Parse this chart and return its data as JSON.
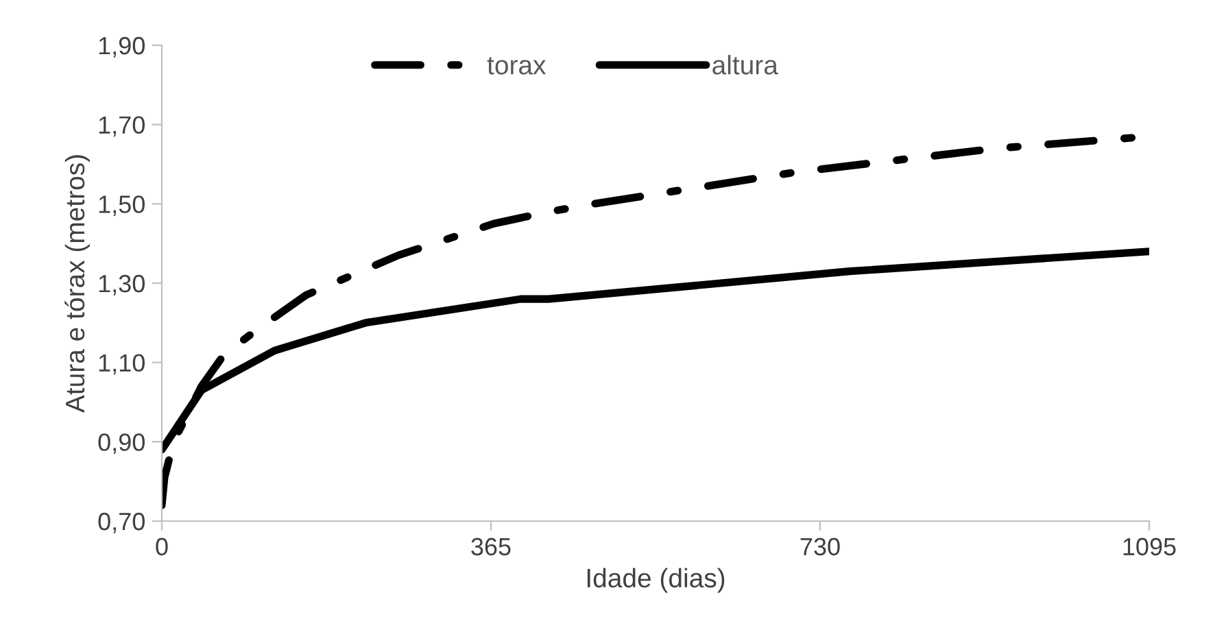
{
  "chart_data": {
    "type": "line",
    "xlabel": "Idade (dias)",
    "ylabel": "Atura e tórax (metros)",
    "xlim": [
      0,
      1095
    ],
    "xticks": [
      0,
      365,
      730,
      1095
    ],
    "ylim": [
      0.7,
      1.9
    ],
    "yticks": [
      {
        "value": 0.7,
        "label": "0,70"
      },
      {
        "value": 0.9,
        "label": "0,90"
      },
      {
        "value": 1.1,
        "label": "1,10"
      },
      {
        "value": 1.3,
        "label": "1,30"
      },
      {
        "value": 1.5,
        "label": "1,50"
      },
      {
        "value": 1.7,
        "label": "1,70"
      },
      {
        "value": 1.9,
        "label": "1,90"
      }
    ],
    "grid": false,
    "legend": "top",
    "marker": "none",
    "series": [
      {
        "name": "torax",
        "color": "#000000",
        "line_style": "dashdot",
        "x": [
          0,
          3,
          13,
          44,
          69,
          110,
          160,
          262,
          368,
          429,
          479,
          703,
          926,
          1095
        ],
        "values": [
          0.74,
          0.81,
          0.9,
          1.04,
          1.12,
          1.19,
          1.27,
          1.37,
          1.45,
          1.48,
          1.5,
          1.58,
          1.64,
          1.67
        ]
      },
      {
        "name": "altura",
        "color": "#000000",
        "line_style": "solid",
        "x": [
          0,
          44,
          125,
          226,
          398,
          429,
          763,
          1095
        ],
        "values": [
          0.88,
          1.03,
          1.13,
          1.2,
          1.26,
          1.26,
          1.33,
          1.38
        ]
      }
    ]
  }
}
